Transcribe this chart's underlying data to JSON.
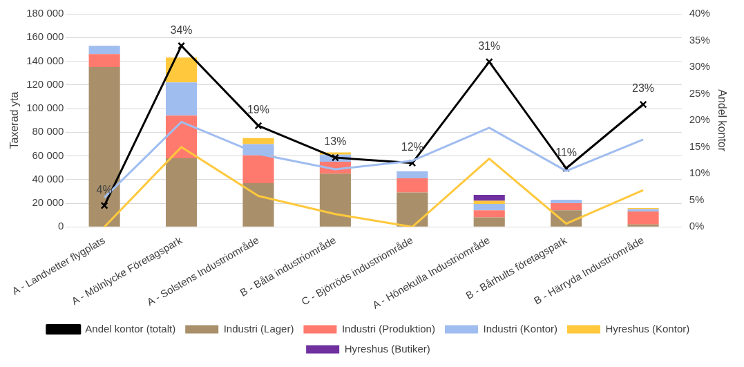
{
  "chart_data": {
    "type": "bar",
    "stacked": true,
    "ylabel": "Taxerad yta",
    "y2label": "Andel kontor",
    "categories": [
      "A - Landvetter flygplats",
      "A - Mölnlycke Företagspark",
      "A - Solstens Industriområde",
      "B - Båta industriområde",
      "C - Björröds industriområde",
      "A - Hönekulla Industriområde",
      "B - Bårhults företagspark",
      "B - Härryda Industriområde"
    ],
    "series": [
      {
        "name": "Industri (Lager)",
        "color": "#a9906a",
        "values": [
          135000,
          58000,
          37000,
          45000,
          29000,
          8000,
          14000,
          2000
        ]
      },
      {
        "name": "Industri (Produktion)",
        "color": "#ff7a6e",
        "values": [
          11000,
          36000,
          23500,
          10000,
          12000,
          6000,
          6000,
          11000
        ]
      },
      {
        "name": "Industri (Kontor)",
        "color": "#a0bdf0",
        "values": [
          7000,
          28000,
          9500,
          6000,
          6000,
          5500,
          3000,
          2000
        ]
      },
      {
        "name": "Hyreshus (Kontor)",
        "color": "#ffc83d",
        "values": [
          0,
          21000,
          5000,
          2000,
          0,
          2500,
          0,
          1000
        ]
      },
      {
        "name": "Hyreshus (Butiker)",
        "color": "#7030a0",
        "values": [
          0,
          0,
          0,
          0,
          0,
          5000,
          0,
          0
        ]
      },
      {
        "type": "line",
        "axis": "y2",
        "color": "#a0bdf0",
        "marker": "none",
        "values": [
          5.5,
          19.7,
          13.7,
          10.8,
          12.4,
          18.6,
          10.5,
          16.4
        ]
      },
      {
        "type": "line",
        "axis": "y2",
        "color": "#ffc83d",
        "marker": "none",
        "values": [
          0,
          15.0,
          5.8,
          2.4,
          0,
          12.8,
          0.6,
          6.9
        ]
      },
      {
        "name": "Andel kontor (totalt)",
        "type": "line",
        "axis": "y2",
        "color": "#000000",
        "marker": "cross",
        "values": [
          4,
          34,
          19,
          13,
          12,
          31,
          11,
          23
        ],
        "value_labels": [
          "4%",
          "34%",
          "19%",
          "13%",
          "12%",
          "31%",
          "11%",
          "23%"
        ]
      }
    ],
    "ylim": [
      0,
      180000
    ],
    "yticks": [
      {
        "value": 0,
        "label": "0"
      },
      {
        "value": 20000,
        "label": "20 000"
      },
      {
        "value": 40000,
        "label": "40 000"
      },
      {
        "value": 60000,
        "label": "60 000"
      },
      {
        "value": 80000,
        "label": "80 000"
      },
      {
        "value": 100000,
        "label": "100 000"
      },
      {
        "value": 120000,
        "label": "120 000"
      },
      {
        "value": 140000,
        "label": "140 000"
      },
      {
        "value": 160000,
        "label": "160 000"
      },
      {
        "value": 180000,
        "label": "180 000"
      }
    ],
    "y2lim": [
      0,
      40
    ],
    "y2ticks": [
      {
        "value": 0,
        "label": "0%"
      },
      {
        "value": 5,
        "label": "5%"
      },
      {
        "value": 10,
        "label": "10%"
      },
      {
        "value": 15,
        "label": "15%"
      },
      {
        "value": 20,
        "label": "20%"
      },
      {
        "value": 25,
        "label": "25%"
      },
      {
        "value": 30,
        "label": "30%"
      },
      {
        "value": 35,
        "label": "35%"
      },
      {
        "value": 40,
        "label": "40%"
      }
    ],
    "grid": "y",
    "legend": "bottom"
  }
}
